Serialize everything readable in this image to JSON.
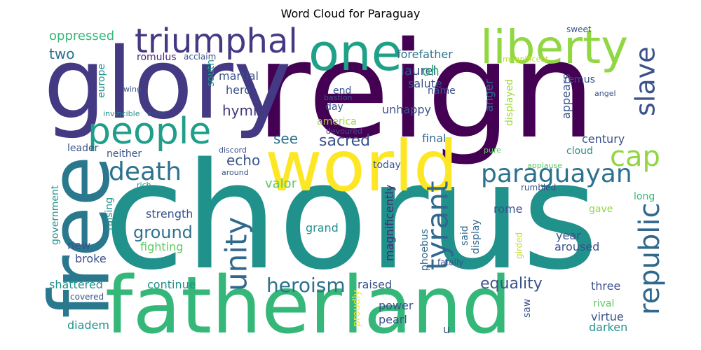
{
  "chart_data": {
    "type": "wordcloud",
    "title": "Word Cloud for Paraguay",
    "colormap": "viridis",
    "words": [
      {
        "text": "chorus",
        "color": "#21918c"
      },
      {
        "text": "reign",
        "color": "#440154"
      },
      {
        "text": "glory",
        "color": "#443983"
      },
      {
        "text": "fatherland",
        "color": "#35b779"
      },
      {
        "text": "world",
        "color": "#fde725"
      },
      {
        "text": "free",
        "color": "#2a788e"
      },
      {
        "text": "one",
        "color": "#1fa187"
      },
      {
        "text": "liberty",
        "color": "#90d743"
      },
      {
        "text": "people",
        "color": "#1f9e89"
      },
      {
        "text": "triumphal",
        "color": "#443983"
      },
      {
        "text": "paraguayan",
        "color": "#2c728e"
      },
      {
        "text": "unity",
        "color": "#31688e"
      },
      {
        "text": "death",
        "color": "#2c728e"
      },
      {
        "text": "republic",
        "color": "#31688e"
      },
      {
        "text": "tyrant",
        "color": "#31688e"
      },
      {
        "text": "cap",
        "color": "#90d743"
      },
      {
        "text": "slave",
        "color": "#3b528b"
      },
      {
        "text": "heroism",
        "color": "#2c728e"
      },
      {
        "text": "equality",
        "color": "#3b528b"
      },
      {
        "text": "ground",
        "color": "#2c728e"
      },
      {
        "text": "sacred",
        "color": "#3b528b"
      },
      {
        "text": "echo",
        "color": "#3b528b"
      },
      {
        "text": "hymn",
        "color": "#443983"
      },
      {
        "text": "laurel",
        "color": "#3b528b"
      },
      {
        "text": "see",
        "color": "#2c728e"
      },
      {
        "text": "two",
        "color": "#2c728e"
      },
      {
        "text": "oh",
        "color": "#35b779"
      },
      {
        "text": "valor",
        "color": "#5ec962"
      },
      {
        "text": "oppressed",
        "color": "#35b779"
      },
      {
        "text": "forefather",
        "color": "#2c728e"
      },
      {
        "text": "martial",
        "color": "#3b528b"
      },
      {
        "text": "salute",
        "color": "#3b528b"
      },
      {
        "text": "romulus",
        "color": "#482878"
      },
      {
        "text": "remus",
        "color": "#3b528b"
      },
      {
        "text": "anger",
        "color": "#31688e"
      },
      {
        "text": "displayed",
        "color": "#a0da39"
      },
      {
        "text": "appears",
        "color": "#3b528b"
      },
      {
        "text": "hero",
        "color": "#3b528b"
      },
      {
        "text": "end",
        "color": "#3b528b"
      },
      {
        "text": "day",
        "color": "#3b528b"
      },
      {
        "text": "name",
        "color": "#3b528b"
      },
      {
        "text": "unhappy",
        "color": "#3b528b"
      },
      {
        "text": "century",
        "color": "#3b528b"
      },
      {
        "text": "cloud",
        "color": "#21918c"
      },
      {
        "text": "america",
        "color": "#a0da39"
      },
      {
        "text": "final",
        "color": "#31688e"
      },
      {
        "text": "europe",
        "color": "#21918c"
      },
      {
        "text": "south",
        "color": "#21918c"
      },
      {
        "text": "leader",
        "color": "#3b528b"
      },
      {
        "text": "neither",
        "color": "#3b528b"
      },
      {
        "text": "today",
        "color": "#3b528b"
      },
      {
        "text": "august",
        "color": "#21918c"
      },
      {
        "text": "long",
        "color": "#35b779"
      },
      {
        "text": "strength",
        "color": "#3b528b"
      },
      {
        "text": "raising",
        "color": "#21918c"
      },
      {
        "text": "government",
        "color": "#21918c"
      },
      {
        "text": "divided",
        "color": "#21918c"
      },
      {
        "text": "grand",
        "color": "#21918c"
      },
      {
        "text": "magnificently",
        "color": "#482878"
      },
      {
        "text": "rome",
        "color": "#3b528b"
      },
      {
        "text": "gave",
        "color": "#90d743"
      },
      {
        "text": "said",
        "color": "#31688e"
      },
      {
        "text": "display",
        "color": "#31688e"
      },
      {
        "text": "phoebus",
        "color": "#31688e"
      },
      {
        "text": "year",
        "color": "#3b528b"
      },
      {
        "text": "aroused",
        "color": "#3b528b"
      },
      {
        "text": "new",
        "color": "#3b528b"
      },
      {
        "text": "broke",
        "color": "#3b528b"
      },
      {
        "text": "fighting",
        "color": "#5ec962"
      },
      {
        "text": "shattered",
        "color": "#21918c"
      },
      {
        "text": "continue",
        "color": "#21918c"
      },
      {
        "text": "raised",
        "color": "#3b528b"
      },
      {
        "text": "three",
        "color": "#3b528b"
      },
      {
        "text": "rival",
        "color": "#5ec962"
      },
      {
        "text": "virtue",
        "color": "#3b528b"
      },
      {
        "text": "darken",
        "color": "#21918c"
      },
      {
        "text": "power",
        "color": "#3b528b"
      },
      {
        "text": "pearl",
        "color": "#3b528b"
      },
      {
        "text": "saw",
        "color": "#3b528b"
      },
      {
        "text": "diadem",
        "color": "#21918c"
      },
      {
        "text": "proudly",
        "color": "#fde725"
      },
      {
        "text": "u",
        "color": "#3b528b"
      },
      {
        "text": "covered",
        "color": "#3b528b"
      },
      {
        "text": "fatally",
        "color": "#3b528b"
      },
      {
        "text": "girded",
        "color": "#bddf26"
      },
      {
        "text": "rumbled",
        "color": "#3b528b"
      },
      {
        "text": "sweet",
        "color": "#3b528b"
      },
      {
        "text": "acclaim",
        "color": "#3b528b"
      },
      {
        "text": "magnificent",
        "color": "#bddf26"
      },
      {
        "text": "wing",
        "color": "#3b528b"
      },
      {
        "text": "bastion",
        "color": "#3b528b"
      },
      {
        "text": "angel",
        "color": "#3b528b"
      },
      {
        "text": "invincible",
        "color": "#21918c"
      },
      {
        "text": "eden",
        "color": "#3b528b"
      },
      {
        "text": "devoured",
        "color": "#3b528b"
      },
      {
        "text": "discord",
        "color": "#3b528b"
      },
      {
        "text": "pure",
        "color": "#5ec962"
      },
      {
        "text": "applause",
        "color": "#5ec962"
      },
      {
        "text": "around",
        "color": "#3b528b"
      },
      {
        "text": "rich",
        "color": "#21918c"
      }
    ]
  }
}
